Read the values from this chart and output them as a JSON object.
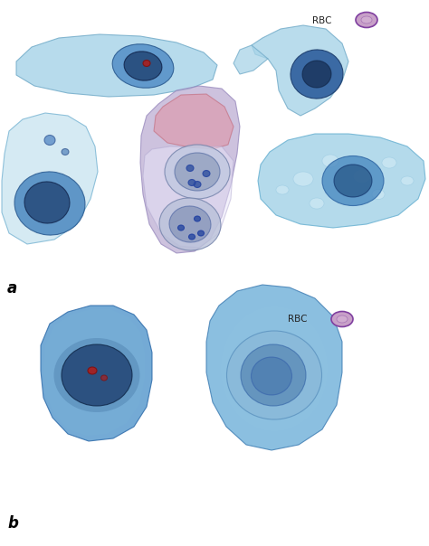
{
  "background_color": "#ffffff",
  "label_a": "a",
  "label_b": "b",
  "cell_blue_light": "#a8d4e8",
  "cell_blue_light2": "#88c0dc",
  "cell_blue_mid": "#4a8abf",
  "cell_blue_dark": "#1a4a7a",
  "cell_blue_vivid": "#3a7abf",
  "cell_nucleus_dark": "#1a3060",
  "cell_nucleus_red": "#aa2020",
  "cell_purple_body": "#b8a8d0",
  "cell_purple_light": "#d0c8e8",
  "cell_pink": "#d88090",
  "rbc_fill": "#c8a0c8",
  "rbc_edge": "#8040a0"
}
